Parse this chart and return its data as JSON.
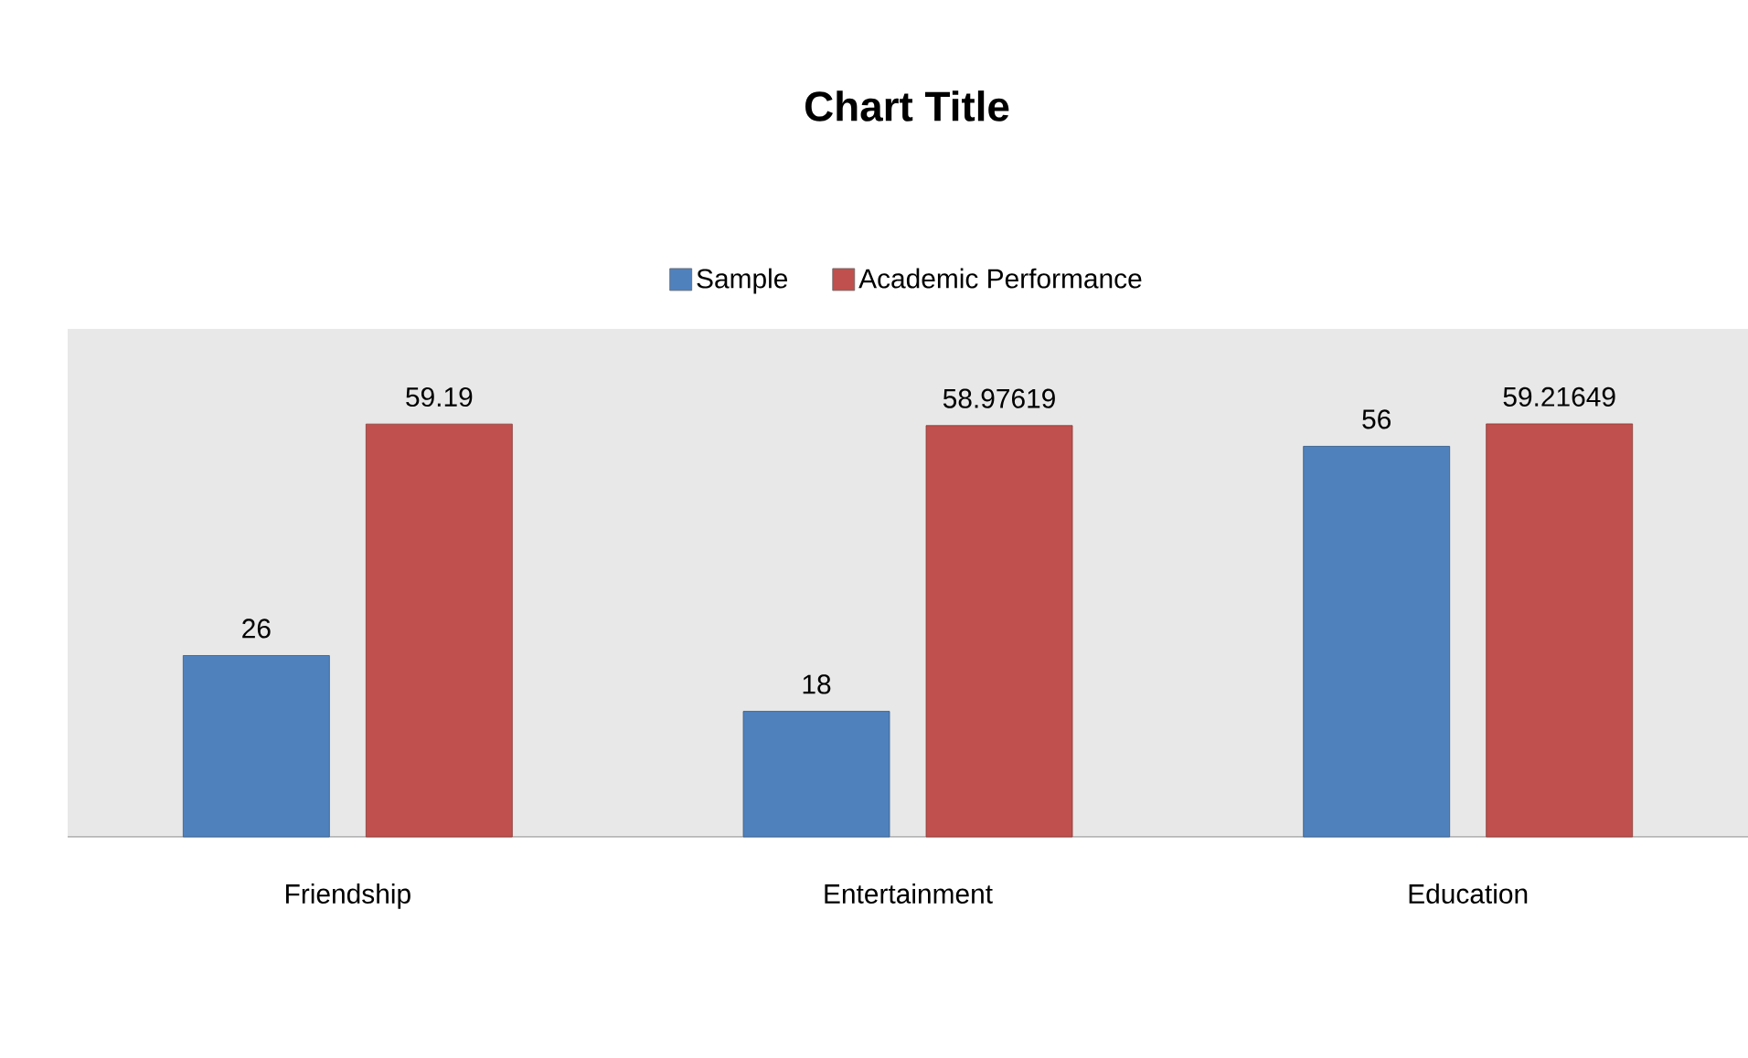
{
  "chart_data": {
    "type": "bar",
    "title": "Chart Title",
    "categories": [
      "Friendship",
      "Entertainment",
      "Education"
    ],
    "series": [
      {
        "name": "Sample",
        "color": "#4f81bd",
        "values": [
          26,
          18,
          56
        ]
      },
      {
        "name": "Academic Performance",
        "color": "#c0504d",
        "values": [
          59.19,
          58.97619,
          59.21649
        ]
      }
    ],
    "data_labels": true,
    "legend": "top"
  }
}
